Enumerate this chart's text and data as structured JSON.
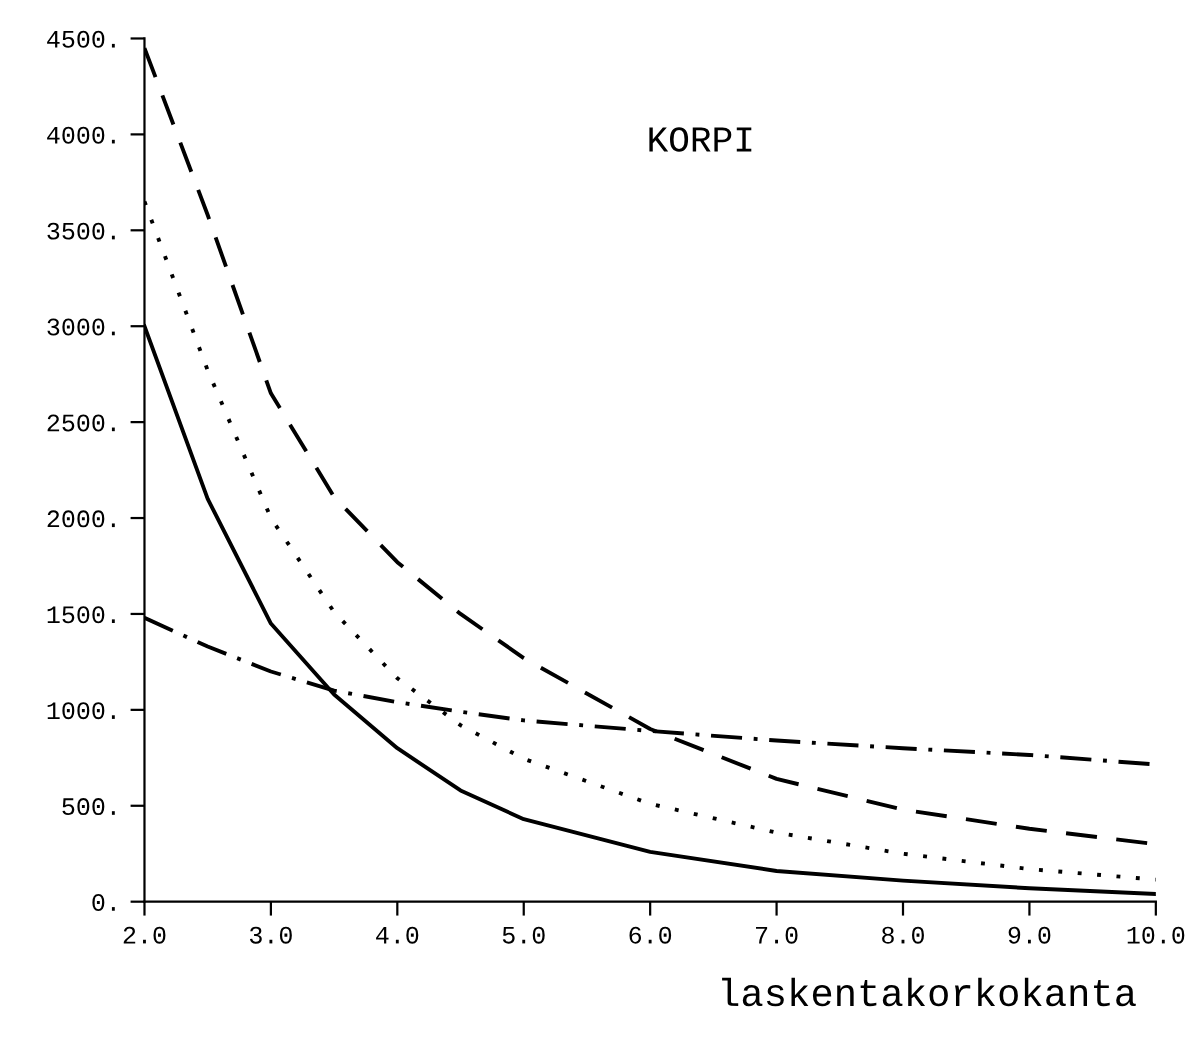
{
  "chart_data": {
    "type": "line",
    "title": "KORPI",
    "xlabel": "laskentakorkokanta",
    "x": [
      2.0,
      2.5,
      3.0,
      3.5,
      4.0,
      4.5,
      5.0,
      6.0,
      7.0,
      8.0,
      9.0,
      10.0
    ],
    "series": [
      {
        "color": "#000000",
        "line_style": "solid",
        "values": [
          3000,
          2100,
          1450,
          1080,
          800,
          580,
          430,
          260,
          160,
          110,
          70,
          40
        ]
      },
      {
        "color": "#000000",
        "line_style": "dotted",
        "values": [
          3650,
          2770,
          2000,
          1510,
          1165,
          920,
          745,
          510,
          360,
          250,
          170,
          115
        ]
      },
      {
        "color": "#000000",
        "line_style": "dashed",
        "values": [
          4450,
          3580,
          2650,
          2110,
          1770,
          1500,
          1270,
          900,
          640,
          480,
          380,
          300
        ]
      },
      {
        "color": "#000000",
        "line_style": "dashdot",
        "values": [
          1480,
          1330,
          1200,
          1100,
          1040,
          990,
          945,
          890,
          840,
          800,
          765,
          715
        ]
      }
    ],
    "xlim": [
      2,
      10
    ],
    "ylim": [
      0,
      4500
    ],
    "xticks": [
      {
        "value": 2,
        "label": "2.0"
      },
      {
        "value": 3,
        "label": "3.0"
      },
      {
        "value": 4,
        "label": "4.0"
      },
      {
        "value": 5,
        "label": "5.0"
      },
      {
        "value": 6,
        "label": "6.0"
      },
      {
        "value": 7,
        "label": "7.0"
      },
      {
        "value": 8,
        "label": "8.0"
      },
      {
        "value": 9,
        "label": "9.0"
      },
      {
        "value": 10,
        "label": "10.0"
      }
    ],
    "yticks": [
      {
        "value": 0,
        "label": "0."
      },
      {
        "value": 500,
        "label": "500."
      },
      {
        "value": 1000,
        "label": "1000."
      },
      {
        "value": 1500,
        "label": "1500."
      },
      {
        "value": 2000,
        "label": "2000."
      },
      {
        "value": 2500,
        "label": "2500."
      },
      {
        "value": 3000,
        "label": "3000."
      },
      {
        "value": 3500,
        "label": "3500."
      },
      {
        "value": 4000,
        "label": "4000."
      },
      {
        "value": 4500,
        "label": "4500."
      }
    ],
    "grid": false,
    "legend": false,
    "marker": "none"
  }
}
